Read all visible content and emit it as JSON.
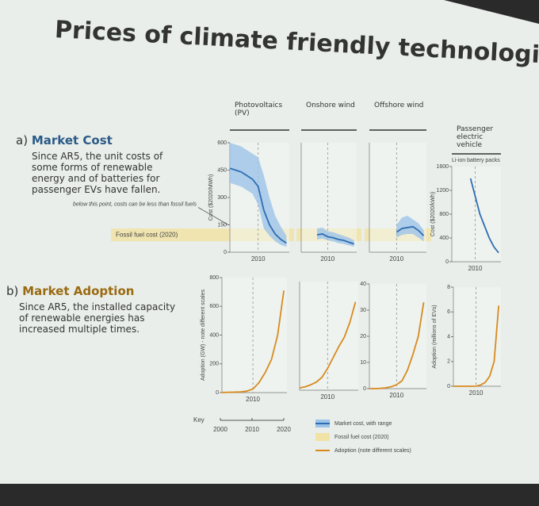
{
  "title": "Prices of climate friendly technologies",
  "sections": [
    {
      "label": "a)",
      "heading": "Market Cost",
      "text": "Since AR5, the unit costs of some forms of renewable energy and of batteries for passenger EVs have fallen."
    },
    {
      "label": "b)",
      "heading": "Market Adoption",
      "text": "Since AR5, the installed capacity of renewable energies has increased multiple times."
    }
  ],
  "chart_data": [
    {
      "type": "line",
      "title": "Photovoltaics (PV)",
      "ylabel": "Cost ($2020/MWh)",
      "color": "#2f6db3",
      "range_color": "#9cc3e8",
      "x": [
        2000,
        2002,
        2004,
        2006,
        2008,
        2010,
        2012,
        2014,
        2016,
        2018,
        2020
      ],
      "values": [
        460,
        450,
        440,
        420,
        400,
        360,
        230,
        150,
        100,
        70,
        50
      ],
      "range_low": [
        380,
        370,
        360,
        340,
        320,
        260,
        130,
        90,
        60,
        40,
        30
      ],
      "range_high": [
        600,
        590,
        580,
        560,
        540,
        520,
        420,
        300,
        200,
        140,
        90
      ],
      "xlim": [
        2000,
        2021
      ],
      "ylim": [
        0,
        600
      ],
      "yticks": [
        0,
        150,
        300,
        450,
        600
      ],
      "xticks": [
        2010
      ],
      "fossil_range": [
        60,
        130
      ],
      "fossil_label": "Fossil fuel cost (2020)",
      "annotation": "below this point, costs can be less than fossil fuels"
    },
    {
      "type": "line",
      "title": "Onshore wind",
      "color": "#2f6db3",
      "range_color": "#9cc3e8",
      "x": [
        2006,
        2008,
        2010,
        2012,
        2014,
        2016,
        2018,
        2020
      ],
      "values": [
        95,
        100,
        85,
        80,
        70,
        65,
        55,
        45
      ],
      "range_low": [
        70,
        75,
        65,
        60,
        50,
        45,
        38,
        30
      ],
      "range_high": [
        130,
        135,
        115,
        110,
        100,
        90,
        80,
        65
      ],
      "xlim": [
        2000,
        2021
      ],
      "ylim": [
        0,
        600
      ],
      "xticks": [
        2010
      ],
      "fossil_range": [
        60,
        130
      ]
    },
    {
      "type": "line",
      "title": "Offshore wind",
      "color": "#2f6db3",
      "range_color": "#9cc3e8",
      "x": [
        2010,
        2012,
        2014,
        2016,
        2018,
        2020
      ],
      "values": [
        110,
        130,
        135,
        140,
        120,
        90
      ],
      "range_low": [
        80,
        95,
        100,
        100,
        80,
        60
      ],
      "range_high": [
        150,
        190,
        200,
        180,
        160,
        120
      ],
      "xlim": [
        2000,
        2021
      ],
      "ylim": [
        0,
        600
      ],
      "xticks": [
        2010
      ],
      "fossil_range": [
        60,
        130
      ]
    },
    {
      "type": "line",
      "title": "Passenger electric vehicle",
      "subtitle": "Li-ion battery packs",
      "ylabel": "Cost ($2020/kWh)",
      "color": "#2f6db3",
      "x": [
        2008,
        2010,
        2012,
        2014,
        2016,
        2018,
        2020
      ],
      "values": [
        1400,
        1100,
        800,
        600,
        400,
        250,
        150
      ],
      "xlim": [
        2000,
        2021
      ],
      "ylim": [
        0,
        1600
      ],
      "yticks": [
        0,
        400,
        800,
        1200,
        1600
      ],
      "xticks": [
        2010
      ]
    },
    {
      "type": "line",
      "ylabel": "Adoption (GW) - note different scales",
      "color": "#d88a1e",
      "x": [
        2000,
        2002,
        2004,
        2006,
        2008,
        2010,
        2012,
        2014,
        2016,
        2018,
        2020
      ],
      "values": [
        1,
        2,
        3,
        5,
        10,
        25,
        70,
        140,
        230,
        400,
        710
      ],
      "xlim": [
        2000,
        2021
      ],
      "ylim": [
        0,
        800
      ],
      "yticks": [
        0,
        200,
        400,
        600,
        800
      ],
      "xticks": [
        2010
      ]
    },
    {
      "type": "line",
      "color": "#d88a1e",
      "x": [
        2000,
        2002,
        2004,
        2006,
        2008,
        2010,
        2012,
        2014,
        2016,
        2018,
        2020
      ],
      "values": [
        17,
        25,
        40,
        60,
        95,
        160,
        240,
        320,
        390,
        500,
        650
      ],
      "xlim": [
        2000,
        2021
      ],
      "ylim": [
        0,
        800
      ],
      "xticks": [
        2010
      ]
    },
    {
      "type": "line",
      "color": "#d88a1e",
      "x": [
        2000,
        2002,
        2004,
        2006,
        2008,
        2010,
        2012,
        2014,
        2016,
        2018,
        2020
      ],
      "values": [
        0,
        0,
        0.1,
        0.3,
        0.7,
        1.5,
        3,
        7,
        13,
        20,
        33
      ],
      "xlim": [
        2000,
        2021
      ],
      "ylim": [
        0,
        40
      ],
      "yticks": [
        0,
        10,
        20,
        30,
        40
      ],
      "xticks": [
        2010
      ]
    },
    {
      "type": "line",
      "ylabel": "Adoption (millions of EVs)",
      "color": "#d88a1e",
      "x": [
        2000,
        2002,
        2004,
        2006,
        2008,
        2010,
        2012,
        2014,
        2016,
        2018,
        2020
      ],
      "values": [
        0,
        0,
        0,
        0,
        0,
        0.01,
        0.1,
        0.3,
        0.8,
        2,
        6.5
      ],
      "xlim": [
        2000,
        2021
      ],
      "ylim": [
        0,
        8
      ],
      "yticks": [
        0,
        2,
        4,
        6,
        8
      ],
      "xticks": [
        2010
      ]
    }
  ],
  "key": {
    "title": "Key",
    "xticks": [
      2000,
      2010,
      2020
    ],
    "items": [
      {
        "label": "Market cost, with range",
        "color": "#2f6db3",
        "fill": "#9cc3e8"
      },
      {
        "label": "Fossil fuel cost (2020)",
        "fill": "#f1e3a6"
      },
      {
        "label": "Adoption (note different scales)",
        "color": "#d88a1e"
      }
    ]
  }
}
